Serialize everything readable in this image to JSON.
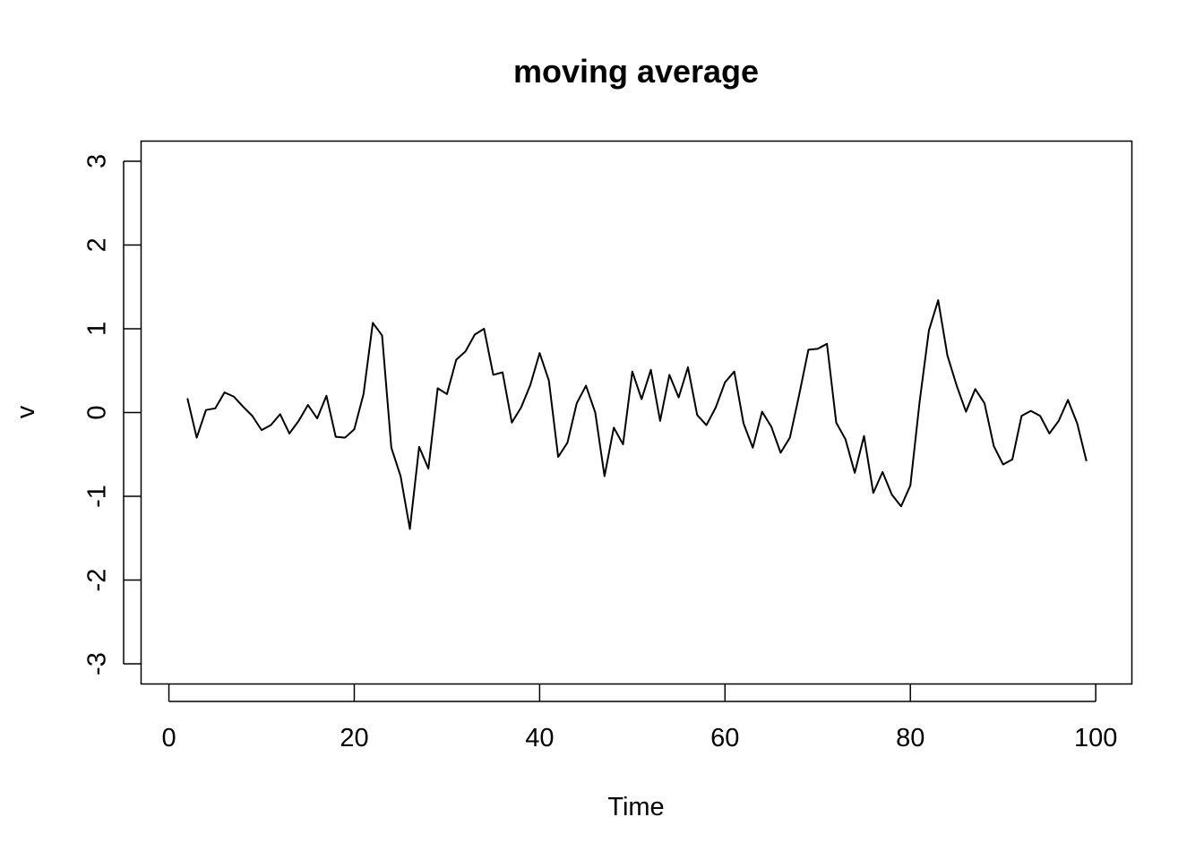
{
  "chart_data": {
    "type": "line",
    "title": "moving average",
    "xlabel": "Time",
    "ylabel": "v",
    "xlim": [
      -3.0,
      103.9
    ],
    "ylim": [
      -3.24,
      3.24
    ],
    "x_ticks": [
      0,
      20,
      40,
      60,
      80,
      100
    ],
    "y_ticks": [
      -3,
      -2,
      -1,
      0,
      1,
      2,
      3
    ],
    "x_tick_labels": [
      "0",
      "20",
      "40",
      "60",
      "80",
      "100"
    ],
    "y_tick_labels": [
      "-3",
      "-2",
      "-1",
      "0",
      "1",
      "2",
      "3"
    ],
    "grid": false,
    "line_color": "#000000",
    "series": [
      {
        "x": [
          2,
          3,
          4,
          5,
          6,
          7,
          8,
          9,
          10,
          11,
          12,
          13,
          14,
          15,
          16,
          17,
          18,
          19,
          20,
          21,
          22,
          23,
          24,
          25,
          26,
          27,
          28,
          29,
          30,
          31,
          32,
          33,
          34,
          35,
          36,
          37,
          38,
          39,
          40,
          41,
          42,
          43,
          44,
          45,
          46,
          47,
          48,
          49,
          50,
          51,
          52,
          53,
          54,
          55,
          56,
          57,
          58,
          59,
          60,
          61,
          62,
          63,
          64,
          65,
          66,
          67,
          68,
          69,
          70,
          71,
          72,
          73,
          74,
          75,
          76,
          77,
          78,
          79,
          80,
          81,
          82,
          83,
          84,
          85,
          86,
          87,
          88,
          89,
          90,
          91,
          92,
          93,
          94,
          95,
          96,
          97,
          98,
          99
        ],
        "values": [
          0.17,
          -0.3,
          0.03,
          0.05,
          0.24,
          0.19,
          0.07,
          -0.04,
          -0.21,
          -0.15,
          -0.02,
          -0.25,
          -0.1,
          0.09,
          -0.07,
          0.2,
          -0.29,
          -0.3,
          -0.2,
          0.22,
          1.07,
          0.92,
          -0.42,
          -0.76,
          -1.39,
          -0.41,
          -0.67,
          0.29,
          0.22,
          0.63,
          0.73,
          0.93,
          1.0,
          0.45,
          0.48,
          -0.12,
          0.06,
          0.33,
          0.71,
          0.38,
          -0.53,
          -0.36,
          0.11,
          0.32,
          0.0,
          -0.76,
          -0.18,
          -0.38,
          0.49,
          0.16,
          0.51,
          -0.1,
          0.45,
          0.18,
          0.54,
          -0.03,
          -0.15,
          0.06,
          0.36,
          0.49,
          -0.13,
          -0.42,
          0.01,
          -0.17,
          -0.48,
          -0.3,
          0.21,
          0.75,
          0.76,
          0.82,
          -0.12,
          -0.32,
          -0.72,
          -0.28,
          -0.96,
          -0.71,
          -0.98,
          -1.12,
          -0.87,
          0.13,
          0.98,
          1.34,
          0.68,
          0.32,
          0.01,
          0.28,
          0.11,
          -0.4,
          -0.62,
          -0.56,
          -0.04,
          0.02,
          -0.04,
          -0.25,
          -0.1,
          0.15,
          -0.13,
          -0.58
        ]
      }
    ]
  }
}
